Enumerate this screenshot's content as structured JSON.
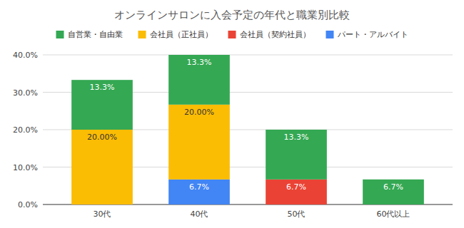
{
  "chart_data": {
    "type": "bar",
    "title": "オンラインサロンに入会予定の年代と職業別比較",
    "categories": [
      "30代",
      "40代",
      "50代",
      "60代以上"
    ],
    "series": [
      {
        "name": "自営業・自由業",
        "color": "#34a853",
        "values": [
          13.3,
          13.3,
          13.3,
          6.7
        ],
        "value_labels": [
          "13.3%",
          "13.3%",
          "13.3%",
          "6.7%"
        ]
      },
      {
        "name": "会社員（正社員）",
        "color": "#fbbc04",
        "values": [
          20,
          20,
          null,
          null
        ],
        "value_labels": [
          "20.00%",
          "20.00%",
          null,
          null
        ]
      },
      {
        "name": "会社員（契約社員）",
        "color": "#ea4335",
        "values": [
          null,
          null,
          6.7,
          null
        ],
        "value_labels": [
          null,
          null,
          "6.7%",
          null
        ]
      },
      {
        "name": "パート・アルバイト",
        "color": "#4285f4",
        "values": [
          null,
          6.7,
          null,
          null
        ],
        "value_labels": [
          null,
          "6.7%",
          null,
          null
        ]
      }
    ],
    "ylim": [
      0,
      40
    ],
    "yticks": [
      {
        "value": 0,
        "label": "0.0%"
      },
      {
        "value": 10,
        "label": "10.0%"
      },
      {
        "value": 20,
        "label": "20.0%"
      },
      {
        "value": 30,
        "label": "30.0%"
      },
      {
        "value": 40,
        "label": "40.0%"
      }
    ],
    "stacked": true,
    "grid": true,
    "data_labels": true,
    "legend": "top"
  }
}
